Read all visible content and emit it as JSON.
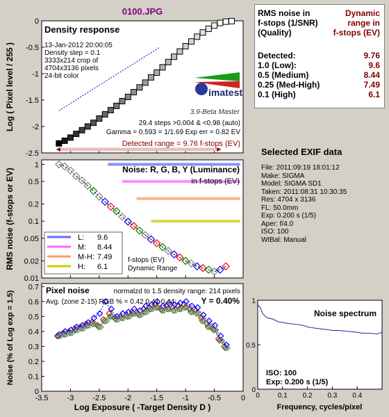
{
  "title": "0100.JPG",
  "rms_box": {
    "header_left": [
      "RMS noise in",
      "f-stops (1/SNR)",
      "(Quality)"
    ],
    "header_right": [
      "Dynamic",
      "range in",
      "f-stops (EV)"
    ],
    "rows": [
      {
        "label": "Detected:",
        "value": "9.76"
      },
      {
        "label": "1.0  (Low):",
        "value": "9.6"
      },
      {
        "label": "0.5  (Medium)",
        "value": "8.44"
      },
      {
        "label": "0.25 (Med-High)",
        "value": "7.49"
      },
      {
        "label": "0.1  (High)",
        "value": "6.1"
      }
    ]
  },
  "exif": {
    "title": "Selected EXIF data",
    "lines": [
      "File:  2011:09:19 18:01:12",
      "Make:  SIGMA",
      "Model: SIGMA SD1",
      "Taken:  2011:08:31 10:30:35",
      "Res:   4704 x 3136",
      "FL:   50.0mm",
      "Exp:   0.200 s  (1/5)",
      "Aper:  f/4.0",
      "ISO:   100",
      "WtBal: Manual"
    ]
  },
  "logo": {
    "name": "imatest",
    "version": "3.9-Beta  Master"
  },
  "colors": {
    "L": "#6666ff",
    "M": "#ff66ff",
    "MH": "#ff9966",
    "H": "#cccc00",
    "detected": "#800000",
    "dr_bar": "#e8c0c0"
  },
  "chart_data": [
    {
      "id": "density",
      "type": "line",
      "title": "Density response",
      "info": [
        "13-Jan-2012 20:00:05",
        "Density step = 0.1",
        "3333x214 crop of",
        "4704x3136 pixels",
        "24-bit color"
      ],
      "stats": [
        "29.4 steps >0.004 & <0.98 (auto)",
        "Gamma = 0.593 = 1/1.69  Exp err = 0.82 EV"
      ],
      "detected_range": "Detected range = 9.76 f-stops (EV)",
      "ylabel": "Log ( Pixel level / 255 )",
      "xlim": [
        -3.5,
        0
      ],
      "ylim": [
        -2.5,
        0
      ],
      "yticks": [
        "-2.5",
        "-2",
        "-1.5",
        "-1",
        "-0.5",
        "0"
      ],
      "dr_bar": [
        -3.2,
        -0.43
      ],
      "x": [
        -3.2,
        -3.1,
        -3.0,
        -2.9,
        -2.8,
        -2.7,
        -2.6,
        -2.5,
        -2.4,
        -2.3,
        -2.2,
        -2.1,
        -2.0,
        -1.9,
        -1.8,
        -1.7,
        -1.6,
        -1.5,
        -1.4,
        -1.3,
        -1.2,
        -1.1,
        -1.0,
        -0.9,
        -0.8,
        -0.7,
        -0.6,
        -0.5,
        -0.4,
        -0.3,
        -0.2
      ],
      "y": [
        -2.32,
        -2.27,
        -2.21,
        -2.14,
        -2.07,
        -2.0,
        -1.93,
        -1.85,
        -1.77,
        -1.69,
        -1.61,
        -1.52,
        -1.44,
        -1.35,
        -1.26,
        -1.17,
        -1.07,
        -0.98,
        -0.88,
        -0.78,
        -0.68,
        -0.58,
        -0.48,
        -0.39,
        -0.3,
        -0.22,
        -0.15,
        -0.09,
        -0.04,
        -0.015,
        -0.005
      ],
      "fit_x": [
        -3.2,
        -1.45
      ],
      "fit_y": [
        -1.7,
        -0.5
      ]
    },
    {
      "id": "noise",
      "type": "line",
      "title": "Noise: R, G, B, Y (Luminance)",
      "subtitle": "in f-stops (EV)",
      "ylabel": "RMS noise (f-stops or EV)",
      "xlim": [
        -3.5,
        0
      ],
      "ylog": true,
      "ylim": [
        0.01,
        1.2
      ],
      "yticks": [
        "0.01",
        "0.02",
        "0.05",
        "0.1",
        "0.2",
        "0.5",
        "1"
      ],
      "bars": [
        {
          "key": "L",
          "y": 1.0,
          "x": [
            -2.35,
            -0.05
          ]
        },
        {
          "key": "M",
          "y": 0.5,
          "x": [
            -2.1,
            -0.05
          ]
        },
        {
          "key": "MH",
          "y": 0.25,
          "x": [
            -1.85,
            -0.05
          ]
        },
        {
          "key": "H",
          "y": 0.1,
          "x": [
            -1.6,
            -0.05
          ]
        }
      ],
      "legend": [
        {
          "key": "L",
          "label": "L:",
          "value": "9.6"
        },
        {
          "key": "M",
          "label": "M:",
          "value": "8.44"
        },
        {
          "key": "MH",
          "label": "M-H:",
          "value": "7.49"
        },
        {
          "key": "H",
          "label": "H:",
          "value": "6.1"
        }
      ],
      "legend_note": [
        "f-stops (EV)",
        "Dynamic Range"
      ],
      "x": [
        -3.2,
        -3.1,
        -3.0,
        -2.9,
        -2.8,
        -2.7,
        -2.6,
        -2.5,
        -2.4,
        -2.3,
        -2.2,
        -2.1,
        -2.0,
        -1.9,
        -1.8,
        -1.7,
        -1.6,
        -1.5,
        -1.4,
        -1.3,
        -1.2,
        -1.1,
        -1.0,
        -0.9,
        -0.8,
        -0.7,
        -0.6,
        -0.5,
        -0.4,
        -0.3
      ],
      "y": [
        1.0,
        0.92,
        0.78,
        0.62,
        0.52,
        0.42,
        0.34,
        0.27,
        0.22,
        0.18,
        0.15,
        0.12,
        0.098,
        0.082,
        0.068,
        0.057,
        0.048,
        0.041,
        0.035,
        0.03,
        0.026,
        0.023,
        0.02,
        0.018,
        0.016,
        0.015,
        0.014,
        0.013,
        0.014,
        0.016
      ]
    },
    {
      "id": "pixel_noise",
      "type": "line",
      "title": "Pixel noise",
      "subtitle": "normalzd to 1.5 density range: 214 pixels",
      "avg_text": "Avg. (zone 2-15) RGB % = 0.42  0.41  0.44;",
      "y_text": "Y = 0.40%",
      "ylabel": "Noise (% of Log exp = 1.5)",
      "xlabel": "Log Exposure ( -Target Density D )",
      "xlim": [
        -3.5,
        0
      ],
      "ylim": [
        0,
        0.72
      ],
      "xticks": [
        "-3.5",
        "-3",
        "-2.5",
        "-2",
        "-1.5",
        "-1",
        "-0.5",
        "0"
      ],
      "yticks": [
        "0",
        "0.1",
        "0.2",
        "0.3",
        "0.4",
        "0.5",
        "0.6",
        "0.7"
      ],
      "x": [
        -3.2,
        -3.1,
        -3.0,
        -2.9,
        -2.8,
        -2.7,
        -2.6,
        -2.5,
        -2.4,
        -2.3,
        -2.2,
        -2.1,
        -2.0,
        -1.9,
        -1.8,
        -1.7,
        -1.6,
        -1.5,
        -1.4,
        -1.3,
        -1.2,
        -1.1,
        -1.0,
        -0.9,
        -0.8,
        -0.7,
        -0.6,
        -0.5,
        -0.4,
        -0.3
      ],
      "series": [
        {
          "name": "R",
          "color": "#ff0000",
          "values": [
            0.37,
            0.39,
            0.4,
            0.42,
            0.43,
            0.45,
            0.46,
            0.44,
            0.48,
            0.52,
            0.49,
            0.5,
            0.51,
            0.53,
            0.52,
            0.55,
            0.56,
            0.58,
            0.55,
            0.57,
            0.56,
            0.57,
            0.58,
            0.55,
            0.54,
            0.49,
            0.45,
            0.42,
            0.35,
            0.3
          ]
        },
        {
          "name": "G",
          "color": "#008000",
          "values": [
            0.37,
            0.38,
            0.39,
            0.41,
            0.42,
            0.44,
            0.45,
            0.43,
            0.47,
            0.5,
            0.48,
            0.49,
            0.5,
            0.52,
            0.51,
            0.53,
            0.55,
            0.56,
            0.54,
            0.55,
            0.54,
            0.55,
            0.56,
            0.53,
            0.52,
            0.47,
            0.43,
            0.41,
            0.34,
            0.29
          ]
        },
        {
          "name": "B",
          "color": "#0000ff",
          "values": [
            0.38,
            0.4,
            0.41,
            0.43,
            0.44,
            0.46,
            0.49,
            0.52,
            0.6,
            0.55,
            0.5,
            0.52,
            0.53,
            0.55,
            0.54,
            0.57,
            0.58,
            0.6,
            0.57,
            0.59,
            0.58,
            0.59,
            0.6,
            0.57,
            0.56,
            0.51,
            0.47,
            0.44,
            0.37,
            0.31
          ]
        },
        {
          "name": "Y",
          "color": "#808080",
          "values": [
            0.37,
            0.38,
            0.39,
            0.41,
            0.42,
            0.44,
            0.45,
            0.43,
            0.47,
            0.5,
            0.48,
            0.49,
            0.5,
            0.52,
            0.51,
            0.53,
            0.55,
            0.56,
            0.54,
            0.55,
            0.54,
            0.55,
            0.56,
            0.53,
            0.52,
            0.47,
            0.43,
            0.41,
            0.34,
            0.29
          ]
        }
      ]
    },
    {
      "id": "spectrum",
      "type": "line",
      "title": "Noise spectrum",
      "xlabel": "Frequency, cycles/pixel",
      "xlim": [
        0,
        0.5
      ],
      "ylim": [
        0,
        1
      ],
      "xticks": [
        "0",
        "0.1",
        "0.2",
        "0.3",
        "0.4"
      ],
      "yticks": [
        "0",
        "0.5",
        "1"
      ],
      "iso": "ISO:   100",
      "exp": "Exp:   0.200 s   (1/5)",
      "x": [
        0,
        0.01,
        0.02,
        0.03,
        0.04,
        0.06,
        0.08,
        0.1,
        0.12,
        0.15,
        0.18,
        0.2,
        0.22,
        0.25,
        0.28,
        0.3,
        0.33,
        0.36,
        0.4,
        0.42,
        0.45,
        0.48,
        0.5
      ],
      "y": [
        0.95,
        0.92,
        0.85,
        0.82,
        0.8,
        0.79,
        0.76,
        0.75,
        0.74,
        0.73,
        0.72,
        0.7,
        0.69,
        0.68,
        0.67,
        0.66,
        0.66,
        0.65,
        0.64,
        0.63,
        0.63,
        0.62,
        0.64
      ]
    }
  ]
}
